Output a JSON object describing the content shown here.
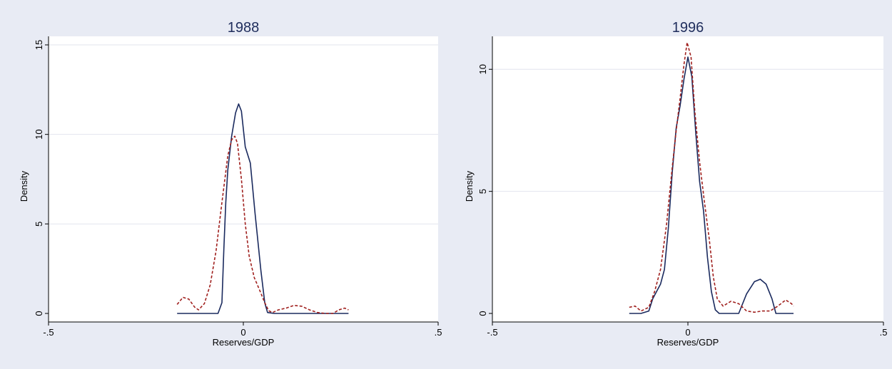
{
  "colors": {
    "background": "#e8ebf4",
    "plot_background": "#ffffff",
    "grid": "#e2e4ee",
    "axis": "#000000",
    "title": "#1f2d5c",
    "series_solid": "#1a2a5e",
    "series_dashed": "#a0201e"
  },
  "chart_data": [
    {
      "type": "line",
      "title": "1988",
      "xlabel": "Reserves/GDP",
      "ylabel": "Density",
      "xlim": [
        -0.5,
        0.5
      ],
      "ylim": [
        0,
        15
      ],
      "x_ticks": [
        -0.5,
        0,
        0.5
      ],
      "x_tick_labels": [
        "-.5",
        "0",
        ".5"
      ],
      "y_ticks": [
        0,
        5,
        10,
        15
      ],
      "y_tick_labels": [
        "0",
        "5",
        "10",
        "15"
      ],
      "grid": true,
      "series": [
        {
          "style": "solid",
          "points": [
            [
              -0.17,
              0
            ],
            [
              -0.13,
              0
            ],
            [
              -0.09,
              0
            ],
            [
              -0.065,
              0
            ],
            [
              -0.055,
              0.6
            ],
            [
              -0.05,
              3.6
            ],
            [
              -0.045,
              6.2
            ],
            [
              -0.04,
              8.0
            ],
            [
              -0.03,
              9.9
            ],
            [
              -0.02,
              11.2
            ],
            [
              -0.012,
              11.7
            ],
            [
              -0.005,
              11.3
            ],
            [
              0.005,
              9.3
            ],
            [
              0.018,
              8.4
            ],
            [
              0.03,
              5.6
            ],
            [
              0.045,
              2.4
            ],
            [
              0.055,
              0.6
            ],
            [
              0.062,
              0.05
            ],
            [
              0.08,
              0
            ],
            [
              0.14,
              0
            ],
            [
              0.2,
              0
            ],
            [
              0.27,
              0
            ]
          ]
        },
        {
          "style": "dashed",
          "points": [
            [
              -0.17,
              0.5
            ],
            [
              -0.155,
              0.9
            ],
            [
              -0.14,
              0.8
            ],
            [
              -0.125,
              0.35
            ],
            [
              -0.115,
              0.2
            ],
            [
              -0.1,
              0.55
            ],
            [
              -0.085,
              1.6
            ],
            [
              -0.07,
              3.5
            ],
            [
              -0.055,
              6.2
            ],
            [
              -0.04,
              8.8
            ],
            [
              -0.03,
              9.7
            ],
            [
              -0.022,
              9.9
            ],
            [
              -0.015,
              9.5
            ],
            [
              -0.005,
              7.5
            ],
            [
              0.005,
              5.0
            ],
            [
              0.015,
              3.2
            ],
            [
              0.028,
              2.0
            ],
            [
              0.04,
              1.4
            ],
            [
              0.055,
              0.6
            ],
            [
              0.065,
              0.15
            ],
            [
              0.075,
              0.05
            ],
            [
              0.09,
              0.2
            ],
            [
              0.11,
              0.3
            ],
            [
              0.13,
              0.45
            ],
            [
              0.15,
              0.4
            ],
            [
              0.17,
              0.2
            ],
            [
              0.19,
              0.05
            ],
            [
              0.21,
              0.0
            ],
            [
              0.23,
              0.0
            ],
            [
              0.245,
              0.2
            ],
            [
              0.26,
              0.3
            ],
            [
              0.27,
              0.2
            ]
          ]
        }
      ]
    },
    {
      "type": "line",
      "title": "1996",
      "xlabel": "Reserves/GDP",
      "ylabel": "Density",
      "xlim": [
        -0.5,
        0.5
      ],
      "ylim": [
        0,
        11
      ],
      "x_ticks": [
        -0.5,
        0,
        0.5
      ],
      "x_tick_labels": [
        "-.5",
        "0",
        ".5"
      ],
      "y_ticks": [
        0,
        5,
        10
      ],
      "y_tick_labels": [
        "0",
        "5",
        "10"
      ],
      "grid": true,
      "series": [
        {
          "style": "solid",
          "points": [
            [
              -0.15,
              0
            ],
            [
              -0.12,
              0
            ],
            [
              -0.1,
              0.1
            ],
            [
              -0.09,
              0.6
            ],
            [
              -0.07,
              1.2
            ],
            [
              -0.06,
              1.8
            ],
            [
              -0.05,
              3.5
            ],
            [
              -0.04,
              5.8
            ],
            [
              -0.03,
              7.6
            ],
            [
              -0.02,
              8.5
            ],
            [
              -0.01,
              9.6
            ],
            [
              0.0,
              10.5
            ],
            [
              0.01,
              9.7
            ],
            [
              0.02,
              7.4
            ],
            [
              0.03,
              5.4
            ],
            [
              0.04,
              4.2
            ],
            [
              0.05,
              2.3
            ],
            [
              0.06,
              0.9
            ],
            [
              0.07,
              0.15
            ],
            [
              0.08,
              0
            ],
            [
              0.1,
              0
            ],
            [
              0.13,
              0
            ],
            [
              0.15,
              0.8
            ],
            [
              0.17,
              1.3
            ],
            [
              0.185,
              1.4
            ],
            [
              0.2,
              1.2
            ],
            [
              0.215,
              0.6
            ],
            [
              0.225,
              0
            ],
            [
              0.25,
              0
            ],
            [
              0.27,
              0
            ]
          ]
        },
        {
          "style": "dashed",
          "points": [
            [
              -0.15,
              0.25
            ],
            [
              -0.135,
              0.3
            ],
            [
              -0.12,
              0.1
            ],
            [
              -0.1,
              0.25
            ],
            [
              -0.085,
              0.9
            ],
            [
              -0.07,
              1.8
            ],
            [
              -0.055,
              3.6
            ],
            [
              -0.04,
              6.0
            ],
            [
              -0.03,
              7.5
            ],
            [
              -0.02,
              8.8
            ],
            [
              -0.01,
              10.2
            ],
            [
              -0.002,
              11.1
            ],
            [
              0.008,
              10.5
            ],
            [
              0.018,
              8.2
            ],
            [
              0.03,
              6.2
            ],
            [
              0.042,
              4.6
            ],
            [
              0.055,
              3.0
            ],
            [
              0.065,
              1.5
            ],
            [
              0.075,
              0.6
            ],
            [
              0.09,
              0.3
            ],
            [
              0.11,
              0.5
            ],
            [
              0.13,
              0.4
            ],
            [
              0.15,
              0.1
            ],
            [
              0.17,
              0.05
            ],
            [
              0.19,
              0.1
            ],
            [
              0.21,
              0.1
            ],
            [
              0.23,
              0.3
            ],
            [
              0.25,
              0.55
            ],
            [
              0.265,
              0.4
            ],
            [
              0.27,
              0.3
            ]
          ]
        }
      ]
    }
  ]
}
